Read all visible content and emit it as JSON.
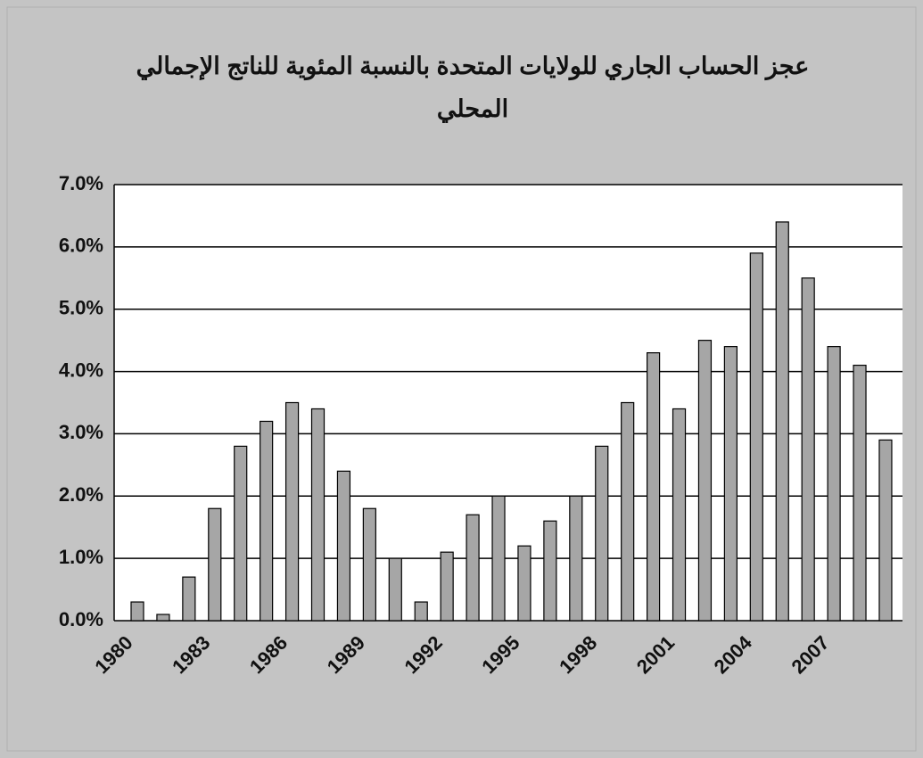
{
  "chart_data": {
    "type": "bar",
    "title": "عجز الحساب الجاري للولايات المتحدة بالنسبة المئوية للناتج الإجمالي المحلي",
    "categories": [
      "1980",
      null,
      null,
      "1983",
      null,
      null,
      "1986",
      null,
      null,
      "1989",
      null,
      null,
      "1992",
      null,
      null,
      "1995",
      null,
      null,
      "1998",
      null,
      null,
      "2001",
      null,
      null,
      "2004",
      null,
      null,
      "2007",
      null,
      null
    ],
    "values": [
      0.3,
      0.1,
      0.7,
      1.8,
      2.8,
      3.2,
      3.5,
      3.4,
      2.4,
      1.8,
      1.0,
      0.3,
      1.1,
      1.7,
      2.0,
      1.2,
      1.6,
      2.0,
      2.8,
      3.5,
      4.3,
      3.4,
      4.5,
      4.4,
      5.9,
      6.4,
      5.5,
      4.4,
      4.1,
      2.9
    ],
    "color": "#a6a6a6",
    "ylim": [
      0,
      7
    ],
    "yticks": [
      {
        "value": 0,
        "label": "0.0%"
      },
      {
        "value": 1,
        "label": "1.0%"
      },
      {
        "value": 2,
        "label": "2.0%"
      },
      {
        "value": 3,
        "label": "3.0%"
      },
      {
        "value": 4,
        "label": "4.0%"
      },
      {
        "value": 5,
        "label": "5.0%"
      },
      {
        "value": 6,
        "label": "6.0%"
      },
      {
        "value": 7,
        "label": "7.0%"
      }
    ],
    "grid": true
  }
}
